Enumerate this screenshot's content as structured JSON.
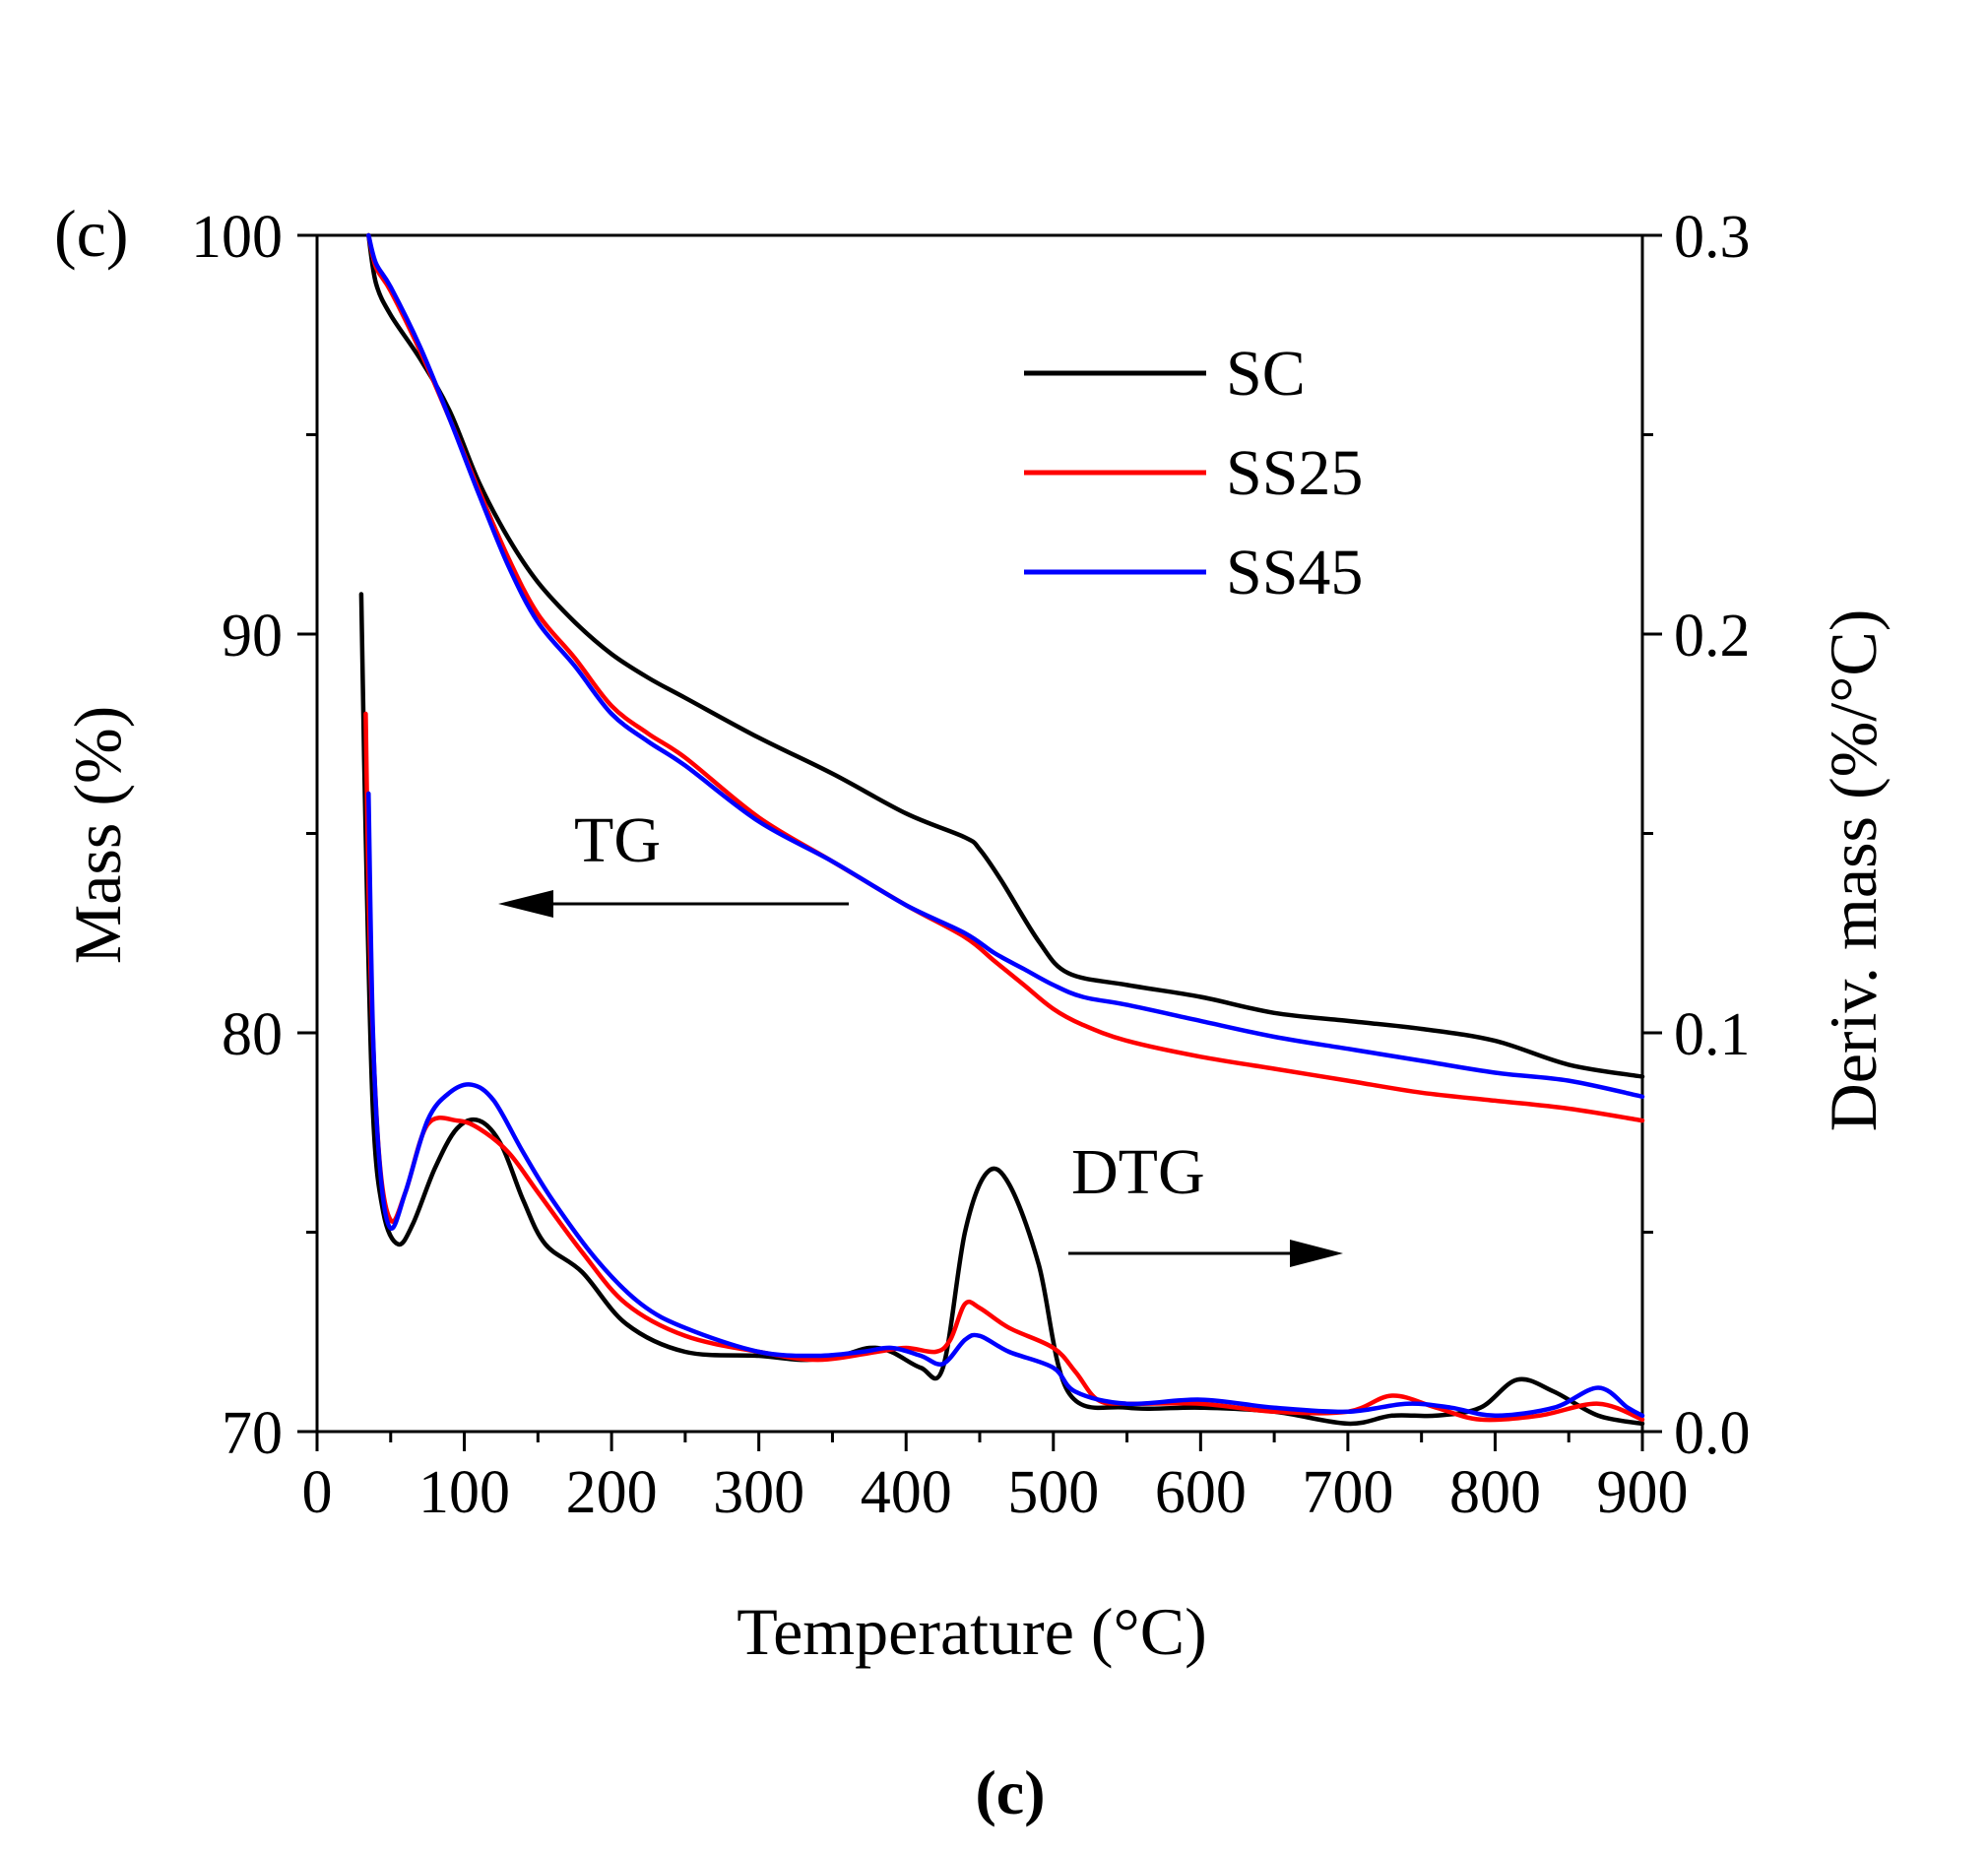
{
  "chart_data": {
    "type": "line",
    "panel_label": "(c)",
    "caption": "(c)",
    "xlabel": "Temperature (°C)",
    "ylabel_left": "Mass (%)",
    "ylabel_right": "Deriv. mass (%/°C)",
    "xlim": [
      0,
      900
    ],
    "ylim_left": [
      70,
      100
    ],
    "ylim_right": [
      0.0,
      0.3
    ],
    "x_ticks": [
      0,
      100,
      200,
      300,
      400,
      500,
      600,
      700,
      800,
      900
    ],
    "x_tick_labels": [
      "0",
      "100",
      "200",
      "300",
      "400",
      "500",
      "600",
      "700",
      "800",
      "900"
    ],
    "y_left_ticks": [
      70,
      80,
      90,
      100
    ],
    "y_left_tick_labels": [
      "70",
      "80",
      "90",
      "100"
    ],
    "y_right_ticks": [
      0.0,
      0.1,
      0.2,
      0.3
    ],
    "y_right_tick_labels": [
      "0.0",
      "0.1",
      "0.2",
      "0.3"
    ],
    "legend_position": "top-right",
    "annotations": [
      {
        "text": "TG",
        "arrow": "left"
      },
      {
        "text": "DTG",
        "arrow": "right"
      }
    ],
    "series": [
      {
        "name": "SC",
        "color": "#000000",
        "kind": "TG",
        "axis": "left",
        "x": [
          35,
          40,
          50,
          70,
          90,
          110,
          130,
          150,
          175,
          200,
          225,
          250,
          300,
          350,
          400,
          440,
          450,
          465,
          490,
          510,
          550,
          600,
          650,
          700,
          750,
          800,
          850,
          900
        ],
        "y": [
          100,
          98.8,
          98.0,
          96.9,
          95.6,
          93.8,
          92.4,
          91.3,
          90.3,
          89.5,
          88.9,
          88.4,
          87.4,
          86.5,
          85.5,
          84.9,
          84.6,
          83.8,
          82.3,
          81.5,
          81.2,
          80.9,
          80.5,
          80.3,
          80.1,
          79.8,
          79.2,
          78.9
        ]
      },
      {
        "name": "SS25",
        "color": "#ff0000",
        "kind": "TG",
        "axis": "left",
        "x": [
          35,
          40,
          50,
          70,
          90,
          110,
          130,
          150,
          175,
          200,
          225,
          250,
          300,
          350,
          400,
          440,
          460,
          480,
          500,
          520,
          550,
          600,
          650,
          700,
          750,
          800,
          850,
          900
        ],
        "y": [
          100,
          99.2,
          98.6,
          97.1,
          95.4,
          93.6,
          91.9,
          90.5,
          89.4,
          88.2,
          87.5,
          86.9,
          85.4,
          84.3,
          83.2,
          82.4,
          81.8,
          81.2,
          80.6,
          80.2,
          79.8,
          79.4,
          79.1,
          78.8,
          78.5,
          78.3,
          78.1,
          77.8
        ]
      },
      {
        "name": "SS45",
        "color": "#0000ff",
        "kind": "TG",
        "axis": "left",
        "x": [
          35,
          40,
          50,
          70,
          90,
          110,
          130,
          150,
          175,
          200,
          225,
          250,
          300,
          350,
          400,
          440,
          460,
          480,
          500,
          520,
          550,
          600,
          650,
          700,
          750,
          800,
          850,
          900
        ],
        "y": [
          100,
          99.3,
          98.7,
          97.2,
          95.4,
          93.5,
          91.7,
          90.3,
          89.2,
          88.0,
          87.3,
          86.7,
          85.3,
          84.3,
          83.2,
          82.5,
          82.0,
          81.6,
          81.2,
          80.9,
          80.7,
          80.3,
          79.9,
          79.6,
          79.3,
          79.0,
          78.8,
          78.4
        ]
      },
      {
        "name": "SC",
        "color": "#000000",
        "kind": "DTG",
        "axis": "right",
        "x": [
          30,
          33,
          38,
          45,
          55,
          65,
          80,
          95,
          110,
          125,
          140,
          155,
          180,
          210,
          250,
          300,
          330,
          355,
          375,
          390,
          410,
          425,
          440,
          455,
          470,
          490,
          510,
          550,
          600,
          650,
          700,
          730,
          760,
          790,
          815,
          840,
          870,
          900
        ],
        "y": [
          0.21,
          0.15,
          0.08,
          0.055,
          0.047,
          0.052,
          0.066,
          0.076,
          0.078,
          0.072,
          0.058,
          0.047,
          0.04,
          0.027,
          0.02,
          0.019,
          0.018,
          0.019,
          0.021,
          0.02,
          0.016,
          0.016,
          0.05,
          0.065,
          0.062,
          0.042,
          0.01,
          0.006,
          0.006,
          0.005,
          0.002,
          0.004,
          0.004,
          0.006,
          0.013,
          0.01,
          0.004,
          0.002
        ]
      },
      {
        "name": "SS25",
        "color": "#ff0000",
        "kind": "DTG",
        "axis": "right",
        "x": [
          33,
          36,
          42,
          50,
          60,
          75,
          95,
          110,
          130,
          150,
          180,
          210,
          250,
          300,
          340,
          380,
          400,
          420,
          430,
          440,
          450,
          470,
          500,
          515,
          530,
          550,
          600,
          650,
          700,
          730,
          760,
          790,
          830,
          870,
          900
        ],
        "y": [
          0.18,
          0.12,
          0.07,
          0.053,
          0.06,
          0.077,
          0.078,
          0.076,
          0.07,
          0.06,
          0.045,
          0.032,
          0.024,
          0.02,
          0.018,
          0.02,
          0.021,
          0.02,
          0.023,
          0.032,
          0.031,
          0.026,
          0.021,
          0.015,
          0.008,
          0.007,
          0.007,
          0.005,
          0.005,
          0.009,
          0.006,
          0.003,
          0.004,
          0.007,
          0.003
        ]
      },
      {
        "name": "SS45",
        "color": "#0000ff",
        "kind": "DTG",
        "axis": "right",
        "x": [
          35,
          38,
          43,
          50,
          60,
          75,
          90,
          105,
          120,
          140,
          160,
          190,
          220,
          250,
          300,
          340,
          370,
          390,
          410,
          425,
          440,
          450,
          470,
          500,
          515,
          550,
          600,
          650,
          700,
          740,
          770,
          800,
          840,
          870,
          890,
          900
        ],
        "y": [
          0.16,
          0.1,
          0.065,
          0.051,
          0.06,
          0.078,
          0.085,
          0.087,
          0.083,
          0.07,
          0.058,
          0.043,
          0.032,
          0.026,
          0.02,
          0.019,
          0.02,
          0.021,
          0.019,
          0.017,
          0.023,
          0.024,
          0.02,
          0.016,
          0.01,
          0.007,
          0.008,
          0.006,
          0.005,
          0.007,
          0.006,
          0.004,
          0.006,
          0.011,
          0.006,
          0.004
        ]
      }
    ]
  }
}
